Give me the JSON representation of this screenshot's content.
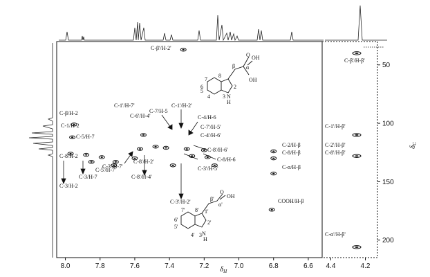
{
  "chart_data": {
    "type": "scatter",
    "title": "",
    "xlabel": "δH",
    "ylabel": "δC",
    "xlim_main": [
      8.05,
      6.52
    ],
    "xlim_side": [
      4.45,
      4.13
    ],
    "ylim": [
      30,
      215
    ],
    "x_ticks_main": [
      "8.0",
      "7.8",
      "7.6",
      "7.4",
      "7.2",
      "7.0",
      "6.8",
      "6.6"
    ],
    "x_ticks_side": [
      "4.4",
      "4.2"
    ],
    "y_ticks": [
      "50",
      "100",
      "150",
      "200"
    ],
    "grid": false,
    "peaks": [
      {
        "x": 7.95,
        "y": 101
      },
      {
        "x": 7.96,
        "y": 112
      },
      {
        "x": 7.97,
        "y": 126
      },
      {
        "x": 7.88,
        "y": 127
      },
      {
        "x": 7.79,
        "y": 129
      },
      {
        "x": 7.85,
        "y": 133
      },
      {
        "x": 7.71,
        "y": 133
      },
      {
        "x": 7.72,
        "y": 136
      },
      {
        "x": 7.6,
        "y": 130
      },
      {
        "x": 7.57,
        "y": 122
      },
      {
        "x": 7.55,
        "y": 110
      },
      {
        "x": 7.48,
        "y": 120
      },
      {
        "x": 7.42,
        "y": 121
      },
      {
        "x": 7.38,
        "y": 136
      },
      {
        "x": 7.3,
        "y": 122
      },
      {
        "x": 7.27,
        "y": 128
      },
      {
        "x": 7.2,
        "y": 123
      },
      {
        "x": 7.18,
        "y": 129
      },
      {
        "x": 7.14,
        "y": 136
      },
      {
        "x": 7.32,
        "y": 37
      },
      {
        "x": 6.8,
        "y": 124
      },
      {
        "x": 6.8,
        "y": 130
      },
      {
        "x": 6.8,
        "y": 143
      },
      {
        "x": 6.81,
        "y": 174
      },
      {
        "x": 4.25,
        "y": 40
      },
      {
        "x": 4.25,
        "y": 110
      },
      {
        "x": 4.25,
        "y": 128
      },
      {
        "x": 4.25,
        "y": 206
      }
    ],
    "labels": [
      "C-β'/H-2'",
      "C-β/H-2",
      "C-1/H-2",
      "C-8/H-2",
      "C-3/H-7",
      "C-3/H-2",
      "C-1'/H-7'",
      "C-6'/H-4'",
      "C-7/H-5",
      "C-1'/H-2'",
      "C-4/H-6",
      "C-7'/H-5'",
      "C-4'/H-6'",
      "C-5'/H-7'",
      "C-3'/H-7'",
      "C-8'/H-2'",
      "C-8'/H-4'",
      "C-3'/H-2'",
      "C-8'/H-6'",
      "C-3'/H-5'",
      "C-8/H-6",
      "C-2/H-β",
      "C-8/H-β",
      "C-α/H-β",
      "COOH/H-β",
      "C-β'/H-β'",
      "C-1'/H-β'",
      "C-2'/H-β'",
      "C-8'/H-β'",
      "C-α'/H-β'"
    ],
    "structure1": {
      "atoms": [
        "7",
        "8",
        "6",
        "5",
        "4",
        "3",
        "2",
        "N",
        "H",
        "β",
        "α",
        "OH",
        "O",
        "OH"
      ]
    },
    "structure2": {
      "atoms": [
        "7'",
        "8'",
        "6'",
        "5'",
        "4'",
        "3",
        "1'",
        "2'",
        "N",
        "H",
        "β'",
        "α'",
        "OH",
        "O"
      ]
    }
  }
}
